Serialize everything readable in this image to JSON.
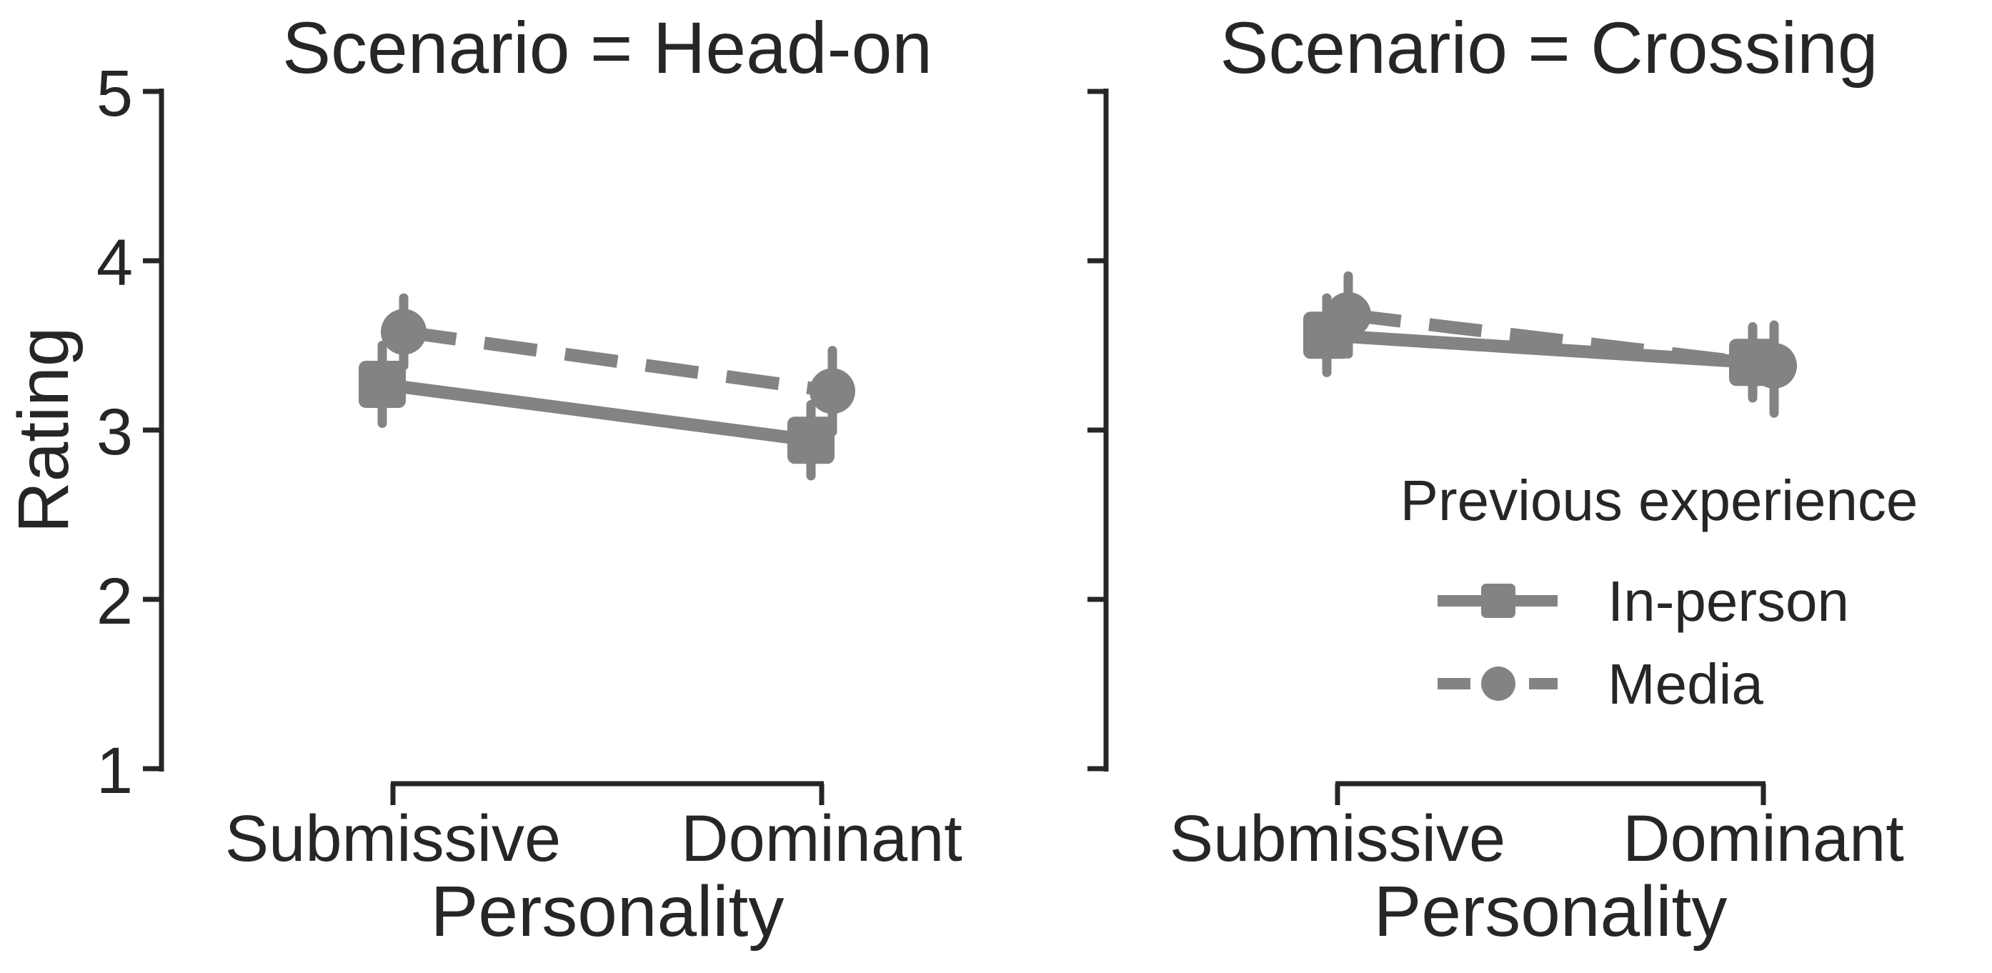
{
  "colors": {
    "series": "#838383",
    "text": "#262626",
    "background": "#ffffff"
  },
  "chart_data": {
    "type": "line",
    "subtype": "pointplot-with-error-bars",
    "categories": [
      "Submissive",
      "Dominant"
    ],
    "xlabel": "Personality",
    "ylabel": "Rating",
    "ylim": [
      1,
      5
    ],
    "yticks": [
      5,
      4,
      3,
      2,
      1
    ],
    "grid": false,
    "legend": {
      "title": "Previous experience",
      "position": "right-of-second-panel",
      "items": [
        {
          "label": "In-person",
          "marker": "square",
          "line": "solid"
        },
        {
          "label": "Media",
          "marker": "circle",
          "line": "dashed"
        }
      ]
    },
    "facets": [
      {
        "title": "Scenario = Head-on",
        "series": [
          {
            "name": "In-person",
            "marker": "square",
            "dash": false,
            "values": [
              3.27,
              2.94
            ],
            "ci": [
              [
                3.04,
                3.5
              ],
              [
                2.73,
                3.15
              ]
            ]
          },
          {
            "name": "Media",
            "marker": "circle",
            "dash": true,
            "values": [
              3.58,
              3.23
            ],
            "ci": [
              [
                3.38,
                3.78
              ],
              [
                2.99,
                3.47
              ]
            ]
          }
        ]
      },
      {
        "title": "Scenario = Crossing",
        "series": [
          {
            "name": "In-person",
            "marker": "square",
            "dash": false,
            "values": [
              3.56,
              3.4
            ],
            "ci": [
              [
                3.34,
                3.78
              ],
              [
                3.19,
                3.61
              ]
            ]
          },
          {
            "name": "Media",
            "marker": "circle",
            "dash": true,
            "values": [
              3.68,
              3.38
            ],
            "ci": [
              [
                3.45,
                3.91
              ],
              [
                3.1,
                3.62
              ]
            ]
          }
        ]
      }
    ]
  }
}
